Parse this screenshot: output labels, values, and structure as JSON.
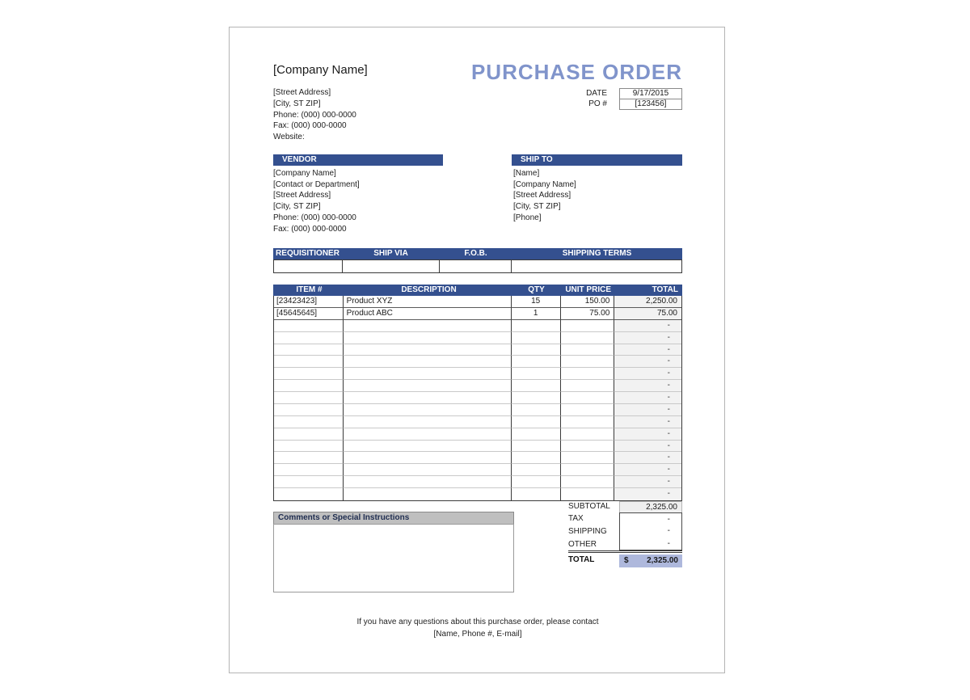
{
  "header": {
    "title": "PURCHASE ORDER",
    "company_name": "[Company Name]",
    "address_lines": [
      "[Street Address]",
      "[City, ST ZIP]",
      "Phone: (000) 000-0000",
      "Fax: (000) 000-0000",
      "Website:"
    ],
    "date_label": "DATE",
    "date_value": "9/17/2015",
    "po_label": "PO #",
    "po_value": "[123456]"
  },
  "vendor": {
    "header": "VENDOR",
    "lines": [
      "[Company Name]",
      "[Contact or Department]",
      "[Street Address]",
      "[City, ST ZIP]",
      "Phone: (000) 000-0000",
      "Fax: (000) 000-0000"
    ]
  },
  "ship_to": {
    "header": "SHIP TO",
    "lines": [
      "[Name]",
      "[Company Name]",
      "[Street Address]",
      "[City, ST ZIP]",
      "[Phone]"
    ]
  },
  "shipping_strip": {
    "headers": [
      "REQUISITIONER",
      "SHIP VIA",
      "F.O.B.",
      "SHIPPING TERMS"
    ],
    "values": [
      "",
      "",
      "",
      ""
    ]
  },
  "items_table": {
    "headers": [
      "ITEM #",
      "DESCRIPTION",
      "QTY",
      "UNIT PRICE",
      "TOTAL"
    ],
    "rows": [
      {
        "item_no": "[23423423]",
        "description": "Product XYZ",
        "qty": "15",
        "unit_price": "150.00",
        "total": "2,250.00"
      },
      {
        "item_no": "[45645645]",
        "description": "Product ABC",
        "qty": "1",
        "unit_price": "75.00",
        "total": "75.00"
      }
    ],
    "empty_row_count": 15,
    "empty_total_placeholder": "-"
  },
  "totals": {
    "subtotal_label": "SUBTOTAL",
    "subtotal_value": "2,325.00",
    "tax_label": "TAX",
    "tax_value": "-",
    "shipping_label": "SHIPPING",
    "shipping_value": "-",
    "other_label": "OTHER",
    "other_value": "-",
    "total_label": "TOTAL",
    "currency_symbol": "$",
    "total_value": "2,325.00"
  },
  "comments": {
    "header": "Comments or Special Instructions",
    "body": ""
  },
  "footer": {
    "line1": "If you have any questions about this purchase order, please contact",
    "line2": "[Name, Phone #, E-mail]"
  },
  "colors": {
    "bar_navy": "#34508f",
    "title_periwinkle": "#8094cb",
    "grand_total_bg": "#aeb8dc",
    "subtotal_bg": "#efefef",
    "total_column_bg": "#f2f2f2",
    "comments_header_bg": "#bfbfbf"
  }
}
